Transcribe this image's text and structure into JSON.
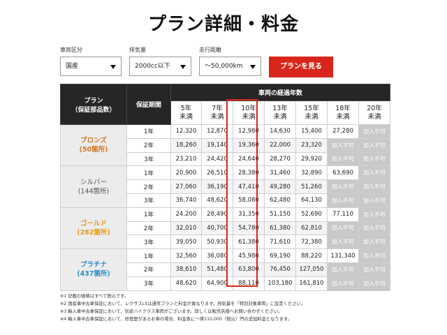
{
  "title": "プラン詳細・料金",
  "filters": [
    {
      "label": "車両区分",
      "value": "国産"
    },
    {
      "label": "排気量",
      "value": "2000cc以下"
    },
    {
      "label": "走行距離",
      "value": "〜50,000km"
    }
  ],
  "submit_label": "プランを見る",
  "table": {
    "plan_header": "プラン",
    "plan_header_sub": "（保証部品数）",
    "period_header": "保証期間",
    "years_header": "車両の経過年数",
    "year_cols": [
      {
        "top": "5年",
        "bottom": "未満"
      },
      {
        "top": "7年",
        "bottom": "未満"
      },
      {
        "top": "10年",
        "bottom": "未満"
      },
      {
        "top": "13年",
        "bottom": "未満"
      },
      {
        "top": "15年",
        "bottom": "未満"
      },
      {
        "top": "18年",
        "bottom": "未満"
      },
      {
        "top": "20年",
        "bottom": "未満"
      }
    ],
    "na_label": "加入不可",
    "plans": [
      {
        "name": "ブロンズ",
        "count": "(50箇所)",
        "color": "#d2782a",
        "rows": [
          {
            "period": "1年",
            "values": [
              "12,320",
              "12,870",
              "12,980",
              "14,630",
              "15,400",
              "27,280",
              ""
            ]
          },
          {
            "period": "2年",
            "values": [
              "18,260",
              "19,140",
              "19,360",
              "22,000",
              "23,320",
              "",
              ""
            ]
          },
          {
            "period": "3年",
            "values": [
              "23,210",
              "24,420",
              "24,640",
              "28,270",
              "29,920",
              "",
              ""
            ]
          }
        ]
      },
      {
        "name": "シルバー",
        "count": "(144箇所)",
        "color": "#555555",
        "rows": [
          {
            "period": "1年",
            "values": [
              "20,900",
              "26,510",
              "28,380",
              "31,460",
              "32,890",
              "63,690",
              ""
            ]
          },
          {
            "period": "2年",
            "values": [
              "27,060",
              "36,190",
              "47,410",
              "49,280",
              "51,260",
              "",
              ""
            ]
          },
          {
            "period": "3年",
            "values": [
              "36,740",
              "48,620",
              "58,080",
              "62,480",
              "64,130",
              "",
              ""
            ]
          }
        ]
      },
      {
        "name": "ゴールド",
        "count": "(282箇所)",
        "color": "#e69c1b",
        "rows": [
          {
            "period": "1年",
            "values": [
              "24,200",
              "28,490",
              "31,350",
              "51,150",
              "52,690",
              "77,110",
              ""
            ]
          },
          {
            "period": "2年",
            "values": [
              "32,010",
              "40,700",
              "54,780",
              "61,380",
              "62,810",
              "",
              ""
            ]
          },
          {
            "period": "3年",
            "values": [
              "39,050",
              "50,930",
              "61,380",
              "71,610",
              "72,380",
              "",
              ""
            ]
          }
        ]
      },
      {
        "name": "プラチナ",
        "count": "(437箇所)",
        "color": "#2d8dc6",
        "rows": [
          {
            "period": "1年",
            "values": [
              "32,560",
              "36,080",
              "45,980",
              "69,190",
              "88,220",
              "131,340",
              ""
            ]
          },
          {
            "period": "2年",
            "values": [
              "38,610",
              "51,480",
              "63,800",
              "76,450",
              "127,050",
              "",
              ""
            ]
          },
          {
            "period": "3年",
            "values": [
              "48,620",
              "64,900",
              "88,110",
              "103,180",
              "161,810",
              "",
              ""
            ]
          }
        ]
      }
    ]
  },
  "notes": [
    "※1 記載の価格はすべて税込です。",
    "※2 国産車中古車保証において、レクサスLSは通常プランと料金が異なります。排気量を「特別対象車両」に設定ください。",
    "※3 輸入車中古車保証において、別途ハイクラス車両がございます。詳しくは販売店様へお問い合わせください。",
    "※4 輸入車中古車保証において、修理歴があるお車の場合、料金表に一律110,000（税込）円の追加料金となります。"
  ]
}
